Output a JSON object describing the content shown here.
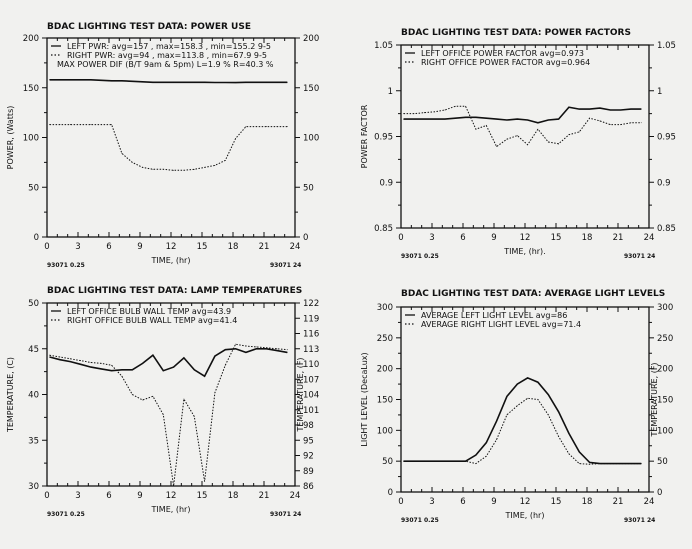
{
  "chart_data": [
    {
      "type": "line",
      "title": "BDAC LIGHTING TEST DATA: POWER USE",
      "xlabel": "TIME, (hr)",
      "ylabel": "POWER, (Watts)",
      "y2label": "",
      "xlim": [
        0,
        24
      ],
      "ylim": [
        0,
        200
      ],
      "y2lim": [
        0,
        200
      ],
      "xticks": [
        "0",
        "3",
        "6",
        "9",
        "12",
        "15",
        "18",
        "21",
        "24"
      ],
      "yticks": [
        "0",
        "50",
        "100",
        "150",
        "200"
      ],
      "y2ticks": [
        "0",
        "50",
        "100",
        "150",
        "200"
      ],
      "legend": [
        "LEFT PWR: avg=157 , max=158.3 , min=155.2 9-5",
        "RIGHT PWR: avg=94 , max=113.8 , min=67.9 9-5",
        "MAX POWER DIF (B/T 9am & 5pm) L=1.9 %  R=40.3 %"
      ],
      "footer_left": "93071 0.25",
      "footer_right": "93071 24",
      "x": [
        0.25,
        1.25,
        2.25,
        3.25,
        4.25,
        5.25,
        6.25,
        7.25,
        8.25,
        9.25,
        10.25,
        11.25,
        12.25,
        13.25,
        14.25,
        15.25,
        16.25,
        17.25,
        18.25,
        19.25,
        20.25,
        21.25,
        22.25,
        23.25
      ],
      "series": [
        {
          "name": "LEFT PWR",
          "style": "solid",
          "values": [
            158,
            158,
            158,
            158,
            158,
            157.5,
            157,
            157,
            156.5,
            156,
            155.5,
            155.5,
            155.5,
            155.5,
            155.5,
            155.5,
            155.3,
            155.3,
            155.2,
            155.5,
            155.5,
            155.5,
            155.5,
            155.5
          ]
        },
        {
          "name": "RIGHT PWR",
          "style": "dotted",
          "values": [
            113,
            113,
            113,
            113,
            113,
            113,
            113,
            84,
            75,
            70,
            68,
            68,
            67,
            67,
            68,
            70,
            72,
            77,
            99,
            111,
            111,
            111,
            111,
            111
          ]
        }
      ]
    },
    {
      "type": "line",
      "title": "BDAC LIGHTING TEST DATA: POWER FACTORS",
      "xlabel": "TIME, (hr).",
      "ylabel": "POWER FACTOR",
      "y2label": "",
      "xlim": [
        0,
        24
      ],
      "ylim": [
        0.85,
        1.05
      ],
      "y2lim": [
        0.85,
        1.05
      ],
      "xticks": [
        "0",
        "3",
        "6",
        "9",
        "12",
        "15",
        "18",
        "21",
        "24"
      ],
      "yticks": [
        "0.85",
        "0.9",
        "0.95",
        "1",
        "1.05"
      ],
      "y2ticks": [
        "0.85",
        "0.9",
        "0.95",
        "1",
        "1.05"
      ],
      "legend": [
        "LEFT OFFICE POWER FACTOR avg=0.973",
        "RIGHT OFFICE POWER FACTOR avg=0.964"
      ],
      "footer_left": "93071 0.25",
      "footer_right": "93071 24",
      "x": [
        0.25,
        1.25,
        2.25,
        3.25,
        4.25,
        5.25,
        6.25,
        7.25,
        8.25,
        9.25,
        10.25,
        11.25,
        12.25,
        13.25,
        14.25,
        15.25,
        16.25,
        17.25,
        18.25,
        19.25,
        20.25,
        21.25,
        22.25,
        23.25
      ],
      "series": [
        {
          "name": "LEFT OFFICE POWER FACTOR",
          "style": "solid",
          "values": [
            0.969,
            0.969,
            0.969,
            0.969,
            0.969,
            0.97,
            0.971,
            0.971,
            0.97,
            0.969,
            0.968,
            0.969,
            0.968,
            0.965,
            0.968,
            0.969,
            0.982,
            0.98,
            0.98,
            0.981,
            0.979,
            0.979,
            0.98,
            0.98
          ]
        },
        {
          "name": "RIGHT OFFICE POWER FACTOR",
          "style": "dotted",
          "values": [
            0.975,
            0.975,
            0.976,
            0.977,
            0.979,
            0.983,
            0.983,
            0.958,
            0.962,
            0.939,
            0.947,
            0.951,
            0.941,
            0.958,
            0.944,
            0.942,
            0.952,
            0.955,
            0.97,
            0.967,
            0.963,
            0.963,
            0.965,
            0.965
          ]
        }
      ]
    },
    {
      "type": "line",
      "title": "BDAC LIGHTING TEST DATA: LAMP TEMPERATURES",
      "xlabel": "TIME, (hr)",
      "ylabel": "TEMPERATURE, (C)",
      "y2label": "TEMPERATURE, (F)",
      "xlim": [
        0,
        24
      ],
      "ylim": [
        30,
        50
      ],
      "y2lim": [
        86,
        122
      ],
      "xticks": [
        "0",
        "3",
        "6",
        "9",
        "12",
        "15",
        "18",
        "21",
        "24"
      ],
      "yticks": [
        "30",
        "35",
        "40",
        "45",
        "50"
      ],
      "y2ticks": [
        "86",
        "89",
        "92",
        "95",
        "98",
        "101",
        "104",
        "107",
        "110",
        "113",
        "116",
        "119",
        "122"
      ],
      "legend": [
        "LEFT OFFICE BULB WALL TEMP avg=43.9",
        "RIGHT OFFICE BULB WALL TEMP avg=41.4"
      ],
      "footer_left": "93071 0.25",
      "footer_right": "93071 24",
      "x": [
        0.25,
        1.25,
        2.25,
        3.25,
        4.25,
        5.25,
        6.25,
        7.25,
        8.25,
        9.25,
        10.25,
        11.25,
        12.25,
        13.25,
        14.25,
        15.25,
        16.25,
        17.25,
        18.25,
        19.25,
        20.25,
        21.25,
        22.25,
        23.25
      ],
      "series": [
        {
          "name": "LEFT OFFICE BULB WALL TEMP",
          "style": "solid",
          "values": [
            44.1,
            43.8,
            43.6,
            43.3,
            43.0,
            42.8,
            42.6,
            42.7,
            42.7,
            43.4,
            44.3,
            42.6,
            43.0,
            44.0,
            42.7,
            42.0,
            44.2,
            44.9,
            45.0,
            44.6,
            45.0,
            45.0,
            44.8,
            44.6
          ]
        },
        {
          "name": "RIGHT OFFICE BULB WALL TEMP",
          "style": "dotted",
          "values": [
            44.3,
            44.1,
            43.9,
            43.7,
            43.5,
            43.4,
            43.2,
            42.0,
            40.0,
            39.4,
            39.8,
            37.8,
            30.0,
            39.5,
            37.6,
            30.5,
            40.2,
            43.2,
            45.5,
            45.3,
            45.2,
            45.1,
            45.0,
            44.9
          ]
        }
      ]
    },
    {
      "type": "line",
      "title": "BDAC LIGHTING TEST DATA: AVERAGE LIGHT LEVELS",
      "xlabel": "TIME, (hr)",
      "ylabel": "LIGHT LEVEL (DecaLux)",
      "y2label": "TEMPERATURE, (F)",
      "xlim": [
        0,
        24
      ],
      "ylim": [
        0,
        300
      ],
      "y2lim": [
        0,
        300
      ],
      "xticks": [
        "0",
        "3",
        "6",
        "9",
        "12",
        "15",
        "18",
        "21",
        "24"
      ],
      "yticks": [
        "0",
        "50",
        "100",
        "150",
        "200",
        "250",
        "300"
      ],
      "y2ticks": [
        "0",
        "50",
        "100",
        "150",
        "200",
        "250",
        "300"
      ],
      "legend": [
        "AVERAGE LEFT LIGHT LEVEL avg=86",
        "AVERAGE RIGHT LIGHT LEVEL avg=71.4"
      ],
      "footer_left": "93071 0.25",
      "footer_right": "93071 24",
      "x": [
        0.25,
        1.25,
        2.25,
        3.25,
        4.25,
        5.25,
        6.25,
        7.25,
        8.25,
        9.25,
        10.25,
        11.25,
        12.25,
        13.25,
        14.25,
        15.25,
        16.25,
        17.25,
        18.25,
        19.25,
        20.25,
        21.25,
        22.25,
        23.25
      ],
      "series": [
        {
          "name": "AVERAGE LEFT LIGHT LEVEL",
          "style": "solid",
          "values": [
            50,
            50,
            50,
            50,
            50,
            50,
            50,
            60,
            80,
            115,
            155,
            175,
            185,
            178,
            158,
            130,
            95,
            65,
            48,
            46,
            46,
            46,
            46,
            46
          ]
        },
        {
          "name": "AVERAGE RIGHT LIGHT LEVEL",
          "style": "dotted",
          "values": [
            50,
            50,
            50,
            50,
            50,
            50,
            50,
            46,
            58,
            85,
            125,
            140,
            152,
            150,
            125,
            90,
            62,
            46,
            45,
            46,
            46,
            46,
            46,
            46
          ]
        }
      ]
    }
  ]
}
